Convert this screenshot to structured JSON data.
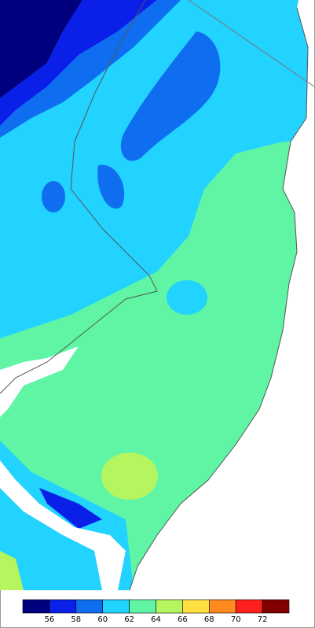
{
  "legend": {
    "colors": [
      "#00007f",
      "#0a1fe8",
      "#0f6ef0",
      "#22d2ff",
      "#5ff5a5",
      "#b5f55f",
      "#ffe040",
      "#ff8a1f",
      "#ff1f1f",
      "#800000"
    ],
    "labels": [
      56,
      58,
      60,
      62,
      64,
      66,
      68,
      70,
      72
    ]
  }
}
